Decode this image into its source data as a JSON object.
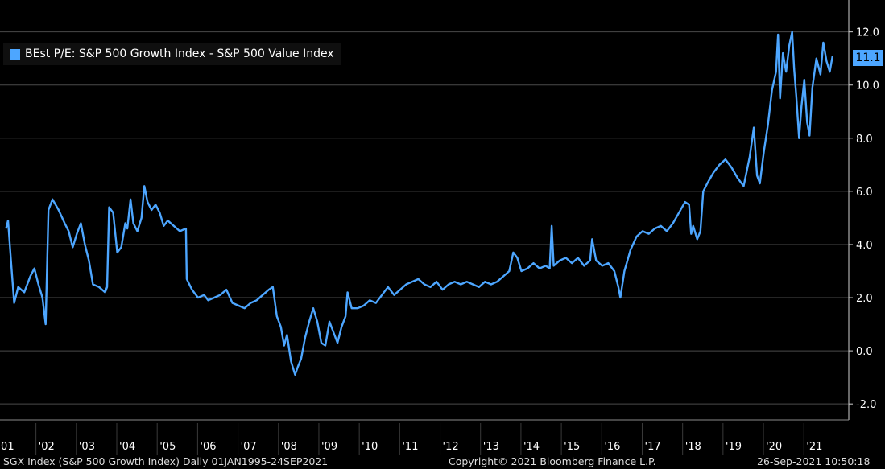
{
  "chart_data": {
    "type": "line",
    "title": "",
    "xlabel": "",
    "ylabel": "",
    "ylim": [
      -2.6,
      13.2
    ],
    "x_ticks": [
      "'01",
      "'02",
      "'03",
      "'04",
      "'05",
      "'06",
      "'07",
      "'08",
      "'09",
      "'10",
      "'11",
      "'12",
      "'13",
      "'14",
      "'15",
      "'16",
      "'17",
      "'18",
      "'19",
      "'20",
      "'21"
    ],
    "y_ticks": [
      "12.0",
      "10.0",
      "8.0",
      "6.0",
      "4.0",
      "2.0",
      "0.0",
      "-2.0"
    ],
    "y_tick_values": [
      12,
      10,
      8,
      6,
      4,
      2,
      0,
      -2
    ],
    "grid": true,
    "legend": "top-left",
    "last_value_label": "11.1",
    "series": [
      {
        "name": "BEst P/E: S&P 500 Growth Index - S&P 500 Value Index",
        "color": "#4da6ff",
        "points": [
          [
            2001.0,
            4.6
          ],
          [
            2001.05,
            4.9
          ],
          [
            2001.12,
            3.4
          ],
          [
            2001.2,
            1.8
          ],
          [
            2001.3,
            2.4
          ],
          [
            2001.45,
            2.2
          ],
          [
            2001.6,
            2.8
          ],
          [
            2001.7,
            3.1
          ],
          [
            2001.8,
            2.5
          ],
          [
            2001.9,
            2.0
          ],
          [
            2001.98,
            1.0
          ],
          [
            2002.05,
            5.3
          ],
          [
            2002.15,
            5.7
          ],
          [
            2002.3,
            5.3
          ],
          [
            2002.45,
            4.8
          ],
          [
            2002.55,
            4.5
          ],
          [
            2002.65,
            3.9
          ],
          [
            2002.75,
            4.4
          ],
          [
            2002.85,
            4.8
          ],
          [
            2002.95,
            4.0
          ],
          [
            2003.05,
            3.4
          ],
          [
            2003.15,
            2.5
          ],
          [
            2003.3,
            2.4
          ],
          [
            2003.45,
            2.2
          ],
          [
            2003.5,
            2.4
          ],
          [
            2003.55,
            5.4
          ],
          [
            2003.65,
            5.2
          ],
          [
            2003.75,
            3.7
          ],
          [
            2003.85,
            3.9
          ],
          [
            2003.95,
            4.8
          ],
          [
            2004.0,
            4.6
          ],
          [
            2004.08,
            5.7
          ],
          [
            2004.15,
            4.8
          ],
          [
            2004.25,
            4.5
          ],
          [
            2004.35,
            5.0
          ],
          [
            2004.42,
            6.2
          ],
          [
            2004.5,
            5.6
          ],
          [
            2004.6,
            5.3
          ],
          [
            2004.7,
            5.5
          ],
          [
            2004.8,
            5.2
          ],
          [
            2004.9,
            4.7
          ],
          [
            2005.0,
            4.9
          ],
          [
            2005.15,
            4.7
          ],
          [
            2005.3,
            4.5
          ],
          [
            2005.45,
            4.6
          ],
          [
            2005.47,
            2.7
          ],
          [
            2005.6,
            2.3
          ],
          [
            2005.75,
            2.0
          ],
          [
            2005.9,
            2.1
          ],
          [
            2006.0,
            1.9
          ],
          [
            2006.15,
            2.0
          ],
          [
            2006.3,
            2.1
          ],
          [
            2006.45,
            2.3
          ],
          [
            2006.6,
            1.8
          ],
          [
            2006.75,
            1.7
          ],
          [
            2006.9,
            1.6
          ],
          [
            2007.05,
            1.8
          ],
          [
            2007.2,
            1.9
          ],
          [
            2007.35,
            2.1
          ],
          [
            2007.5,
            2.3
          ],
          [
            2007.6,
            2.4
          ],
          [
            2007.7,
            1.3
          ],
          [
            2007.8,
            0.9
          ],
          [
            2007.88,
            0.2
          ],
          [
            2007.95,
            0.6
          ],
          [
            2008.05,
            -0.4
          ],
          [
            2008.15,
            -0.9
          ],
          [
            2008.22,
            -0.6
          ],
          [
            2008.3,
            -0.3
          ],
          [
            2008.4,
            0.5
          ],
          [
            2008.5,
            1.1
          ],
          [
            2008.6,
            1.6
          ],
          [
            2008.7,
            1.1
          ],
          [
            2008.8,
            0.3
          ],
          [
            2008.9,
            0.2
          ],
          [
            2009.0,
            1.1
          ],
          [
            2009.1,
            0.7
          ],
          [
            2009.2,
            0.3
          ],
          [
            2009.3,
            0.9
          ],
          [
            2009.4,
            1.3
          ],
          [
            2009.45,
            2.2
          ],
          [
            2009.55,
            1.6
          ],
          [
            2009.7,
            1.6
          ],
          [
            2009.85,
            1.7
          ],
          [
            2010.0,
            1.9
          ],
          [
            2010.15,
            1.8
          ],
          [
            2010.3,
            2.1
          ],
          [
            2010.45,
            2.4
          ],
          [
            2010.6,
            2.1
          ],
          [
            2010.75,
            2.3
          ],
          [
            2010.9,
            2.5
          ],
          [
            2011.05,
            2.6
          ],
          [
            2011.2,
            2.7
          ],
          [
            2011.35,
            2.5
          ],
          [
            2011.5,
            2.4
          ],
          [
            2011.65,
            2.6
          ],
          [
            2011.8,
            2.3
          ],
          [
            2011.95,
            2.5
          ],
          [
            2012.1,
            2.6
          ],
          [
            2012.25,
            2.5
          ],
          [
            2012.4,
            2.6
          ],
          [
            2012.55,
            2.5
          ],
          [
            2012.7,
            2.4
          ],
          [
            2012.85,
            2.6
          ],
          [
            2013.0,
            2.5
          ],
          [
            2013.15,
            2.6
          ],
          [
            2013.3,
            2.8
          ],
          [
            2013.45,
            3.0
          ],
          [
            2013.55,
            3.7
          ],
          [
            2013.65,
            3.5
          ],
          [
            2013.75,
            3.0
          ],
          [
            2013.9,
            3.1
          ],
          [
            2014.05,
            3.3
          ],
          [
            2014.2,
            3.1
          ],
          [
            2014.35,
            3.2
          ],
          [
            2014.45,
            3.1
          ],
          [
            2014.5,
            4.7
          ],
          [
            2014.55,
            3.2
          ],
          [
            2014.7,
            3.4
          ],
          [
            2014.85,
            3.5
          ],
          [
            2015.0,
            3.3
          ],
          [
            2015.15,
            3.5
          ],
          [
            2015.3,
            3.2
          ],
          [
            2015.45,
            3.4
          ],
          [
            2015.5,
            4.2
          ],
          [
            2015.6,
            3.4
          ],
          [
            2015.75,
            3.2
          ],
          [
            2015.9,
            3.3
          ],
          [
            2016.05,
            3.0
          ],
          [
            2016.15,
            2.4
          ],
          [
            2016.2,
            2.0
          ],
          [
            2016.3,
            3.0
          ],
          [
            2016.45,
            3.8
          ],
          [
            2016.6,
            4.3
          ],
          [
            2016.75,
            4.5
          ],
          [
            2016.9,
            4.4
          ],
          [
            2017.05,
            4.6
          ],
          [
            2017.2,
            4.7
          ],
          [
            2017.35,
            4.5
          ],
          [
            2017.5,
            4.8
          ],
          [
            2017.65,
            5.2
          ],
          [
            2017.8,
            5.6
          ],
          [
            2017.9,
            5.5
          ],
          [
            2017.95,
            4.4
          ],
          [
            2018.0,
            4.7
          ],
          [
            2018.1,
            4.2
          ],
          [
            2018.18,
            4.5
          ],
          [
            2018.25,
            6.0
          ],
          [
            2018.35,
            6.3
          ],
          [
            2018.5,
            6.7
          ],
          [
            2018.65,
            7.0
          ],
          [
            2018.8,
            7.2
          ],
          [
            2018.95,
            6.9
          ],
          [
            2019.1,
            6.5
          ],
          [
            2019.25,
            6.2
          ],
          [
            2019.4,
            7.3
          ],
          [
            2019.5,
            8.4
          ],
          [
            2019.58,
            6.6
          ],
          [
            2019.65,
            6.3
          ],
          [
            2019.75,
            7.5
          ],
          [
            2019.85,
            8.5
          ],
          [
            2019.95,
            9.8
          ],
          [
            2020.05,
            10.5
          ],
          [
            2020.1,
            11.9
          ],
          [
            2020.15,
            9.5
          ],
          [
            2020.22,
            11.2
          ],
          [
            2020.3,
            10.5
          ],
          [
            2020.38,
            11.5
          ],
          [
            2020.45,
            12.0
          ],
          [
            2020.5,
            10.6
          ],
          [
            2020.55,
            9.6
          ],
          [
            2020.62,
            8.0
          ],
          [
            2020.68,
            9.2
          ],
          [
            2020.75,
            10.2
          ],
          [
            2020.82,
            8.6
          ],
          [
            2020.88,
            8.1
          ],
          [
            2020.95,
            9.9
          ],
          [
            2021.05,
            11.0
          ],
          [
            2021.15,
            10.4
          ],
          [
            2021.22,
            11.6
          ],
          [
            2021.3,
            10.9
          ],
          [
            2021.38,
            10.5
          ],
          [
            2021.45,
            11.1
          ]
        ]
      }
    ]
  },
  "footer": {
    "left": "SGX Index (S&P 500 Growth Index)  Daily 01JAN1995-24SEP2021",
    "center": "Copyright© 2021 Bloomberg Finance L.P.",
    "right": "26-Sep-2021 10:50:18"
  }
}
